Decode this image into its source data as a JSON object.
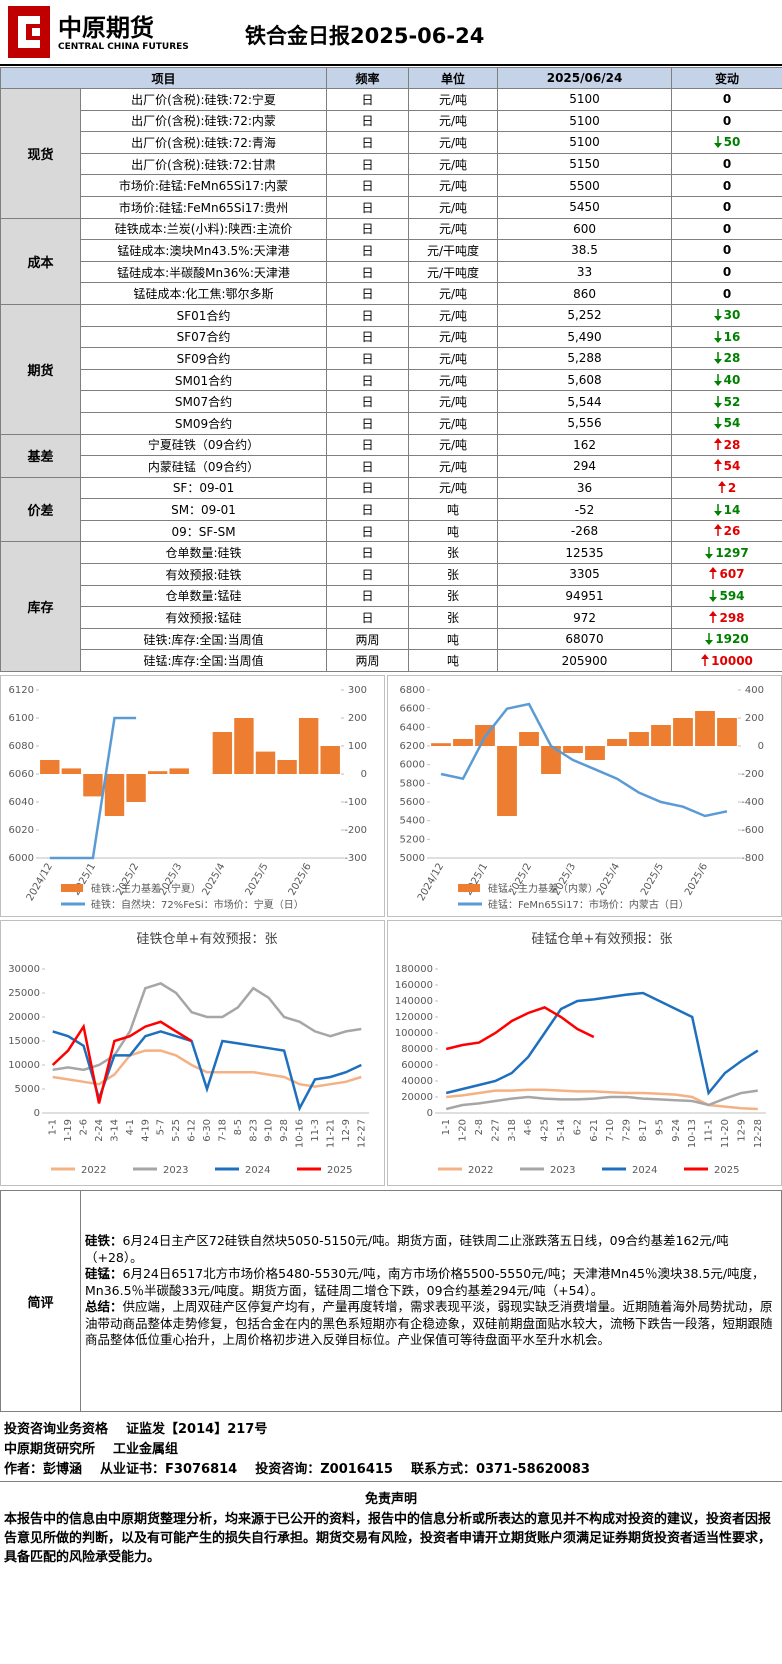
{
  "header": {
    "logo": "中原期货",
    "logo_en": "CENTRAL CHINA FUTURES",
    "title": "铁合金日报2025-06-24"
  },
  "table": {
    "columns": [
      "项目",
      "频率",
      "单位",
      "2025/06/24",
      "变动"
    ],
    "groups": [
      {
        "name": "现货",
        "rows": [
          {
            "item": "出厂价(含税):硅铁:72:宁夏",
            "freq": "日",
            "unit": "元/吨",
            "value": "5100",
            "change": "0"
          },
          {
            "item": "出厂价(含税):硅铁:72:内蒙",
            "freq": "日",
            "unit": "元/吨",
            "value": "5100",
            "change": "0"
          },
          {
            "item": "出厂价(含税):硅铁:72:青海",
            "freq": "日",
            "unit": "元/吨",
            "value": "5100",
            "change": "50",
            "trend": "down"
          },
          {
            "item": "出厂价(含税):硅铁:72:甘肃",
            "freq": "日",
            "unit": "元/吨",
            "value": "5150",
            "change": "0"
          },
          {
            "item": "市场价:硅锰:FeMn65Si17:内蒙",
            "freq": "日",
            "unit": "元/吨",
            "value": "5500",
            "change": "0"
          },
          {
            "item": "市场价:硅锰:FeMn65Si17:贵州",
            "freq": "日",
            "unit": "元/吨",
            "value": "5450",
            "change": "0"
          }
        ]
      },
      {
        "name": "成本",
        "rows": [
          {
            "item": "硅铁成本:兰炭(小料):陕西:主流价",
            "freq": "日",
            "unit": "元/吨",
            "value": "600",
            "change": "0"
          },
          {
            "item": "锰硅成本:澳块Mn43.5%:天津港",
            "freq": "日",
            "unit": "元/干吨度",
            "value": "38.5",
            "change": "0"
          },
          {
            "item": "锰硅成本:半碳酸Mn36%:天津港",
            "freq": "日",
            "unit": "元/干吨度",
            "value": "33",
            "change": "0"
          },
          {
            "item": "锰硅成本:化工焦:鄂尔多斯",
            "freq": "日",
            "unit": "元/吨",
            "value": "860",
            "change": "0"
          }
        ]
      },
      {
        "name": "期货",
        "rows": [
          {
            "item": "SF01合约",
            "freq": "日",
            "unit": "元/吨",
            "value": "5,252",
            "change": "30",
            "trend": "down"
          },
          {
            "item": "SF07合约",
            "freq": "日",
            "unit": "元/吨",
            "value": "5,490",
            "change": "16",
            "trend": "down"
          },
          {
            "item": "SF09合约",
            "freq": "日",
            "unit": "元/吨",
            "value": "5,288",
            "change": "28",
            "trend": "down"
          },
          {
            "item": "SM01合约",
            "freq": "日",
            "unit": "元/吨",
            "value": "5,608",
            "change": "40",
            "trend": "down"
          },
          {
            "item": "SM07合约",
            "freq": "日",
            "unit": "元/吨",
            "value": "5,544",
            "change": "52",
            "trend": "down"
          },
          {
            "item": "SM09合约",
            "freq": "日",
            "unit": "元/吨",
            "value": "5,556",
            "change": "54",
            "trend": "down"
          }
        ]
      },
      {
        "name": "基差",
        "rows": [
          {
            "item": "宁夏硅铁（09合约）",
            "freq": "日",
            "unit": "元/吨",
            "value": "162",
            "change": "28",
            "trend": "up"
          },
          {
            "item": "内蒙硅锰（09合约）",
            "freq": "日",
            "unit": "元/吨",
            "value": "294",
            "change": "54",
            "trend": "up"
          }
        ]
      },
      {
        "name": "价差",
        "rows": [
          {
            "item": "SF：09-01",
            "freq": "日",
            "unit": "元/吨",
            "value": "36",
            "change": "2",
            "trend": "up"
          },
          {
            "item": "SM：09-01",
            "freq": "日",
            "unit": "吨",
            "value": "-52",
            "change": "14",
            "trend": "down"
          },
          {
            "item": "09：SF-SM",
            "freq": "日",
            "unit": "吨",
            "value": "-268",
            "change": "26",
            "trend": "up"
          }
        ]
      },
      {
        "name": "库存",
        "rows": [
          {
            "item": "仓单数量:硅铁",
            "freq": "日",
            "unit": "张",
            "value": "12535",
            "change": "1297",
            "trend": "down"
          },
          {
            "item": "有效预报:硅铁",
            "freq": "日",
            "unit": "张",
            "value": "3305",
            "change": "607",
            "trend": "up"
          },
          {
            "item": "仓单数量:锰硅",
            "freq": "日",
            "unit": "张",
            "value": "94951",
            "change": "594",
            "trend": "down"
          },
          {
            "item": "有效预报:锰硅",
            "freq": "日",
            "unit": "张",
            "value": "972",
            "change": "298",
            "trend": "up"
          },
          {
            "item": "硅铁:库存:全国:当周值",
            "freq": "两周",
            "unit": "吨",
            "value": "68070",
            "change": "1920",
            "trend": "down"
          },
          {
            "item": "硅锰:库存:全国:当周值",
            "freq": "两周",
            "unit": "吨",
            "value": "205900",
            "change": "10000",
            "trend": "up"
          }
        ]
      }
    ]
  },
  "chart_data": [
    {
      "type": "combo",
      "categories": [
        "2024/12",
        null,
        "2025/1",
        null,
        "2025/2",
        null,
        "2025/3",
        null,
        "2025/4",
        null,
        "2025/5",
        null,
        "2025/6",
        null
      ],
      "ylim": [
        6000,
        6120
      ],
      "yticks": [
        6000,
        6020,
        6040,
        6060,
        6080,
        6100,
        6120
      ],
      "y2lim": [
        -300,
        300
      ],
      "y2ticks": [
        -300,
        -200,
        -100,
        0,
        100,
        200,
        300
      ],
      "series": [
        {
          "name": "硅铁：主力基差（宁夏）",
          "color": "#ed7d31",
          "kind": "bar",
          "axis": "y2",
          "values": [
            50,
            20,
            -80,
            -150,
            -100,
            10,
            20,
            0,
            150,
            200,
            80,
            50,
            200,
            100
          ]
        },
        {
          "name": "硅铁：自然块：72%FeSi：市场价：宁夏（日）",
          "color": "#5b9bd5",
          "kind": "line",
          "values": [
            6000,
            6000,
            6000,
            6100,
            6100,
            null,
            null,
            null,
            null,
            null,
            null,
            null,
            null,
            null
          ]
        }
      ]
    },
    {
      "type": "combo",
      "categories": [
        "2024/12",
        null,
        "2025/1",
        null,
        "2025/2",
        null,
        "2025/3",
        null,
        "2025/4",
        null,
        "2025/5",
        null,
        "2025/6",
        null
      ],
      "ylim": [
        5000,
        6800
      ],
      "yticks": [
        5000,
        5200,
        5400,
        5600,
        5800,
        6000,
        6200,
        6400,
        6600,
        6800
      ],
      "y2lim": [
        -800,
        400
      ],
      "y2ticks": [
        -800,
        -600,
        -400,
        -200,
        0,
        200,
        400
      ],
      "series": [
        {
          "name": "硅锰：主力基差（内蒙）",
          "color": "#ed7d31",
          "kind": "bar",
          "axis": "y2",
          "values": [
            20,
            50,
            150,
            -500,
            100,
            -200,
            -50,
            -100,
            50,
            100,
            150,
            200,
            250,
            200
          ]
        },
        {
          "name": "硅锰：FeMn65Si17：市场价：内蒙古（日）",
          "color": "#5b9bd5",
          "kind": "line",
          "values": [
            5900,
            5850,
            6300,
            6600,
            6650,
            6200,
            6050,
            5950,
            5850,
            5700,
            5600,
            5550,
            5450,
            5500
          ]
        }
      ]
    },
    {
      "type": "line",
      "title": "硅铁仓单+有效预报：张",
      "categories": [
        "1-1",
        "1-19",
        "2-6",
        "2-24",
        "3-14",
        "4-1",
        "4-19",
        "5-7",
        "5-25",
        "6-12",
        "6-30",
        "7-18",
        "8-5",
        "8-23",
        "9-10",
        "9-28",
        "10-16",
        "11-3",
        "11-21",
        "12-9",
        "12-27"
      ],
      "ylim": [
        0,
        30000
      ],
      "yticks": [
        0,
        5000,
        10000,
        15000,
        20000,
        25000,
        30000
      ],
      "series": [
        {
          "name": "2022",
          "color": "#f4b183",
          "kind": "line",
          "values": [
            7500,
            7000,
            6500,
            6000,
            8000,
            12000,
            13000,
            13000,
            12000,
            10000,
            8500,
            8500,
            8500,
            8500,
            8000,
            7500,
            6000,
            5500,
            6000,
            6500,
            7500
          ]
        },
        {
          "name": "2023",
          "color": "#a6a6a6",
          "kind": "line",
          "values": [
            9000,
            9500,
            9000,
            10000,
            12000,
            17000,
            26000,
            27000,
            25000,
            21000,
            20000,
            20000,
            22000,
            26000,
            24000,
            20000,
            19000,
            17000,
            16000,
            17000,
            17500
          ]
        },
        {
          "name": "2024",
          "color": "#1f6fbf",
          "kind": "line",
          "values": [
            17000,
            16000,
            14000,
            3000,
            12000,
            12000,
            16000,
            17000,
            16000,
            15000,
            5000,
            15000,
            14500,
            14000,
            13500,
            13000,
            1000,
            7000,
            7500,
            8500,
            10000
          ]
        },
        {
          "name": "2025",
          "color": "#ff0000",
          "kind": "line",
          "values": [
            10000,
            13000,
            18000,
            2000,
            15000,
            16000,
            18000,
            19000,
            17000,
            15000,
            null,
            null,
            null,
            null,
            null,
            null,
            null,
            null,
            null,
            null,
            null
          ]
        }
      ]
    },
    {
      "type": "line",
      "title": "硅锰仓单+有效预报：张",
      "categories": [
        "1-1",
        "1-20",
        "2-8",
        "2-27",
        "3-18",
        "4-6",
        "4-25",
        "5-14",
        "6-2",
        "6-21",
        "7-10",
        "7-29",
        "8-17",
        "9-5",
        "9-24",
        "10-13",
        "11-1",
        "11-20",
        "12-9",
        "12-28"
      ],
      "ylim": [
        0,
        180000
      ],
      "yticks": [
        0,
        20000,
        40000,
        60000,
        80000,
        100000,
        120000,
        140000,
        160000,
        180000
      ],
      "series": [
        {
          "name": "2022",
          "color": "#f4b183",
          "kind": "line",
          "values": [
            20000,
            22000,
            25000,
            28000,
            28000,
            29000,
            29000,
            28000,
            27000,
            27000,
            26000,
            25000,
            25000,
            24000,
            23000,
            20000,
            10000,
            8000,
            6000,
            5000
          ]
        },
        {
          "name": "2023",
          "color": "#a6a6a6",
          "kind": "line",
          "values": [
            5000,
            10000,
            12000,
            15000,
            18000,
            20000,
            18000,
            17000,
            17000,
            18000,
            20000,
            20000,
            18000,
            17000,
            16000,
            15000,
            10000,
            18000,
            25000,
            28000
          ]
        },
        {
          "name": "2024",
          "color": "#1f6fbf",
          "kind": "line",
          "values": [
            25000,
            30000,
            35000,
            40000,
            50000,
            70000,
            100000,
            130000,
            140000,
            142000,
            145000,
            148000,
            150000,
            140000,
            130000,
            120000,
            25000,
            50000,
            65000,
            78000
          ]
        },
        {
          "name": "2025",
          "color": "#ff0000",
          "kind": "line",
          "values": [
            80000,
            85000,
            88000,
            100000,
            115000,
            125000,
            132000,
            120000,
            105000,
            95000,
            null,
            null,
            null,
            null,
            null,
            null,
            null,
            null,
            null,
            null
          ]
        }
      ]
    }
  ],
  "comment": {
    "label": "简评",
    "paragraphs": [
      {
        "lead": "硅铁：",
        "text": "6月24日主产区72硅铁自然块5050-5150元/吨。期货方面，硅铁周二止涨跌落五日线，09合约基差162元/吨（+28）。"
      },
      {
        "lead": "硅锰：",
        "text": "6月24日6517北方市场价格5480-5530元/吨，南方市场价格5500-5550元/吨；天津港Mn45％澳块38.5元/吨度，Mn36.5％半碳酸33元/吨度。期货方面，锰硅周二增仓下跌，09合约基差294元/吨（+54）。"
      },
      {
        "lead": "总结：",
        "text": "供应端，上周双硅产区停复产均有，产量再度转增，需求表现平淡，弱现实缺乏消费增量。近期随着海外局势扰动，原油带动商品整体走势修复，包括合金在内的黑色系短期亦有企稳迹象，双硅前期盘面贴水较大，流畅下跌告一段落，短期跟随商品整体低位重心抬升，上周价格初步进入反弹目标位。产业保值可等待盘面平水至升水机会。"
      }
    ]
  },
  "footer": {
    "line1": [
      "投资咨询业务资格",
      "证监发【2014】217号"
    ],
    "line2": [
      "中原期货研究所",
      "工业金属组"
    ],
    "line3": [
      "作者：彭博涵",
      "从业证书：F3076814",
      "投资咨询：Z0016415",
      "联系方式：0371-58620083"
    ]
  },
  "disclaimer": {
    "title": "免责声明",
    "text": "本报告中的信息由中原期货整理分析，均来源于已公开的资料，报告中的信息分析或所表达的意见并不构成对投资的建议，投资者因报告意见所做的判断，以及有可能产生的损失自行承担。期货交易有风险，投资者申请开立期货账户须满足证券期货投资者适当性要求，具备匹配的风险承受能力。"
  }
}
